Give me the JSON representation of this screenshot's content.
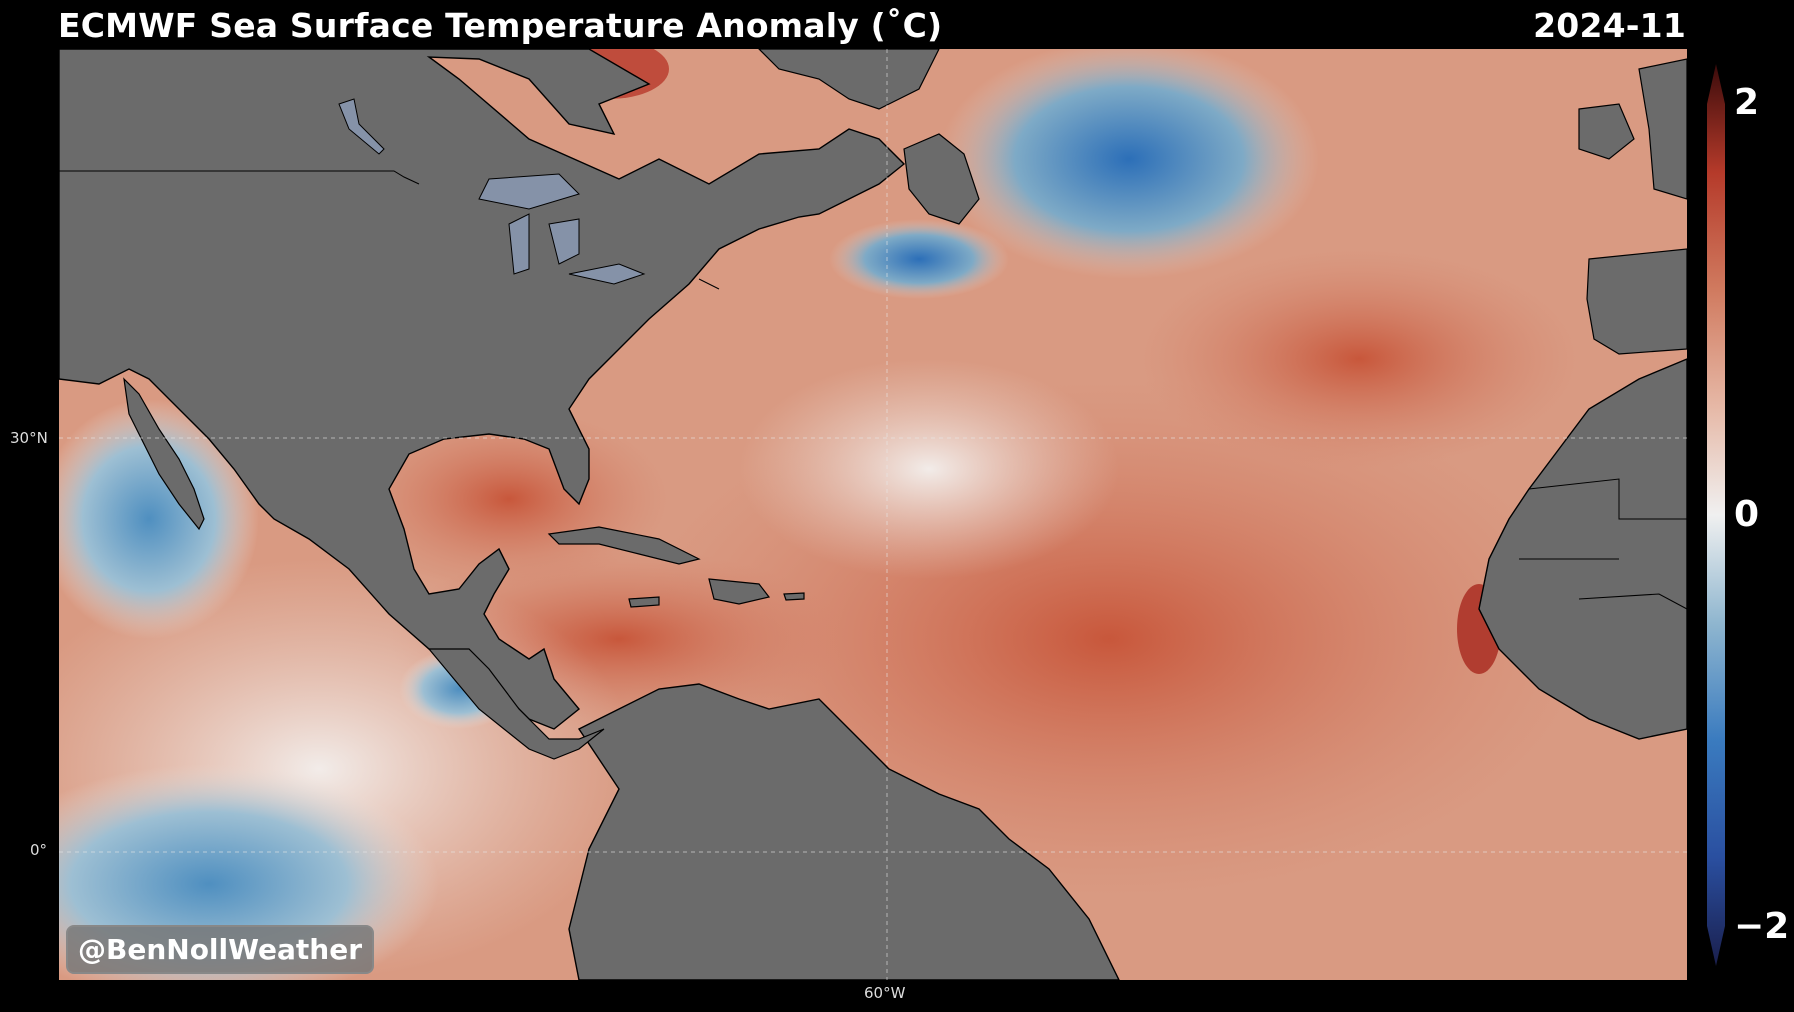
{
  "header": {
    "title": "ECMWF Sea Surface Temperature Anomaly (˚C)",
    "date": "2024-11"
  },
  "map": {
    "lat_labels": [
      "30°N",
      "0°"
    ],
    "lon_labels": [
      "60°W"
    ],
    "land_color": "#6b6b6b",
    "lake_color": "#8592a8",
    "ocean_base_color": "#dba592"
  },
  "watermark": "@BenNollWeather",
  "colorbar": {
    "max_label": "2",
    "mid_label": "0",
    "min_label": "−2",
    "colors": [
      "#1a1f4d",
      "#2a4fa0",
      "#3a7bbf",
      "#8fb6cf",
      "#f0f0f0",
      "#e6b8a6",
      "#d07a5f",
      "#b53a2a",
      "#3b0b0b"
    ]
  }
}
